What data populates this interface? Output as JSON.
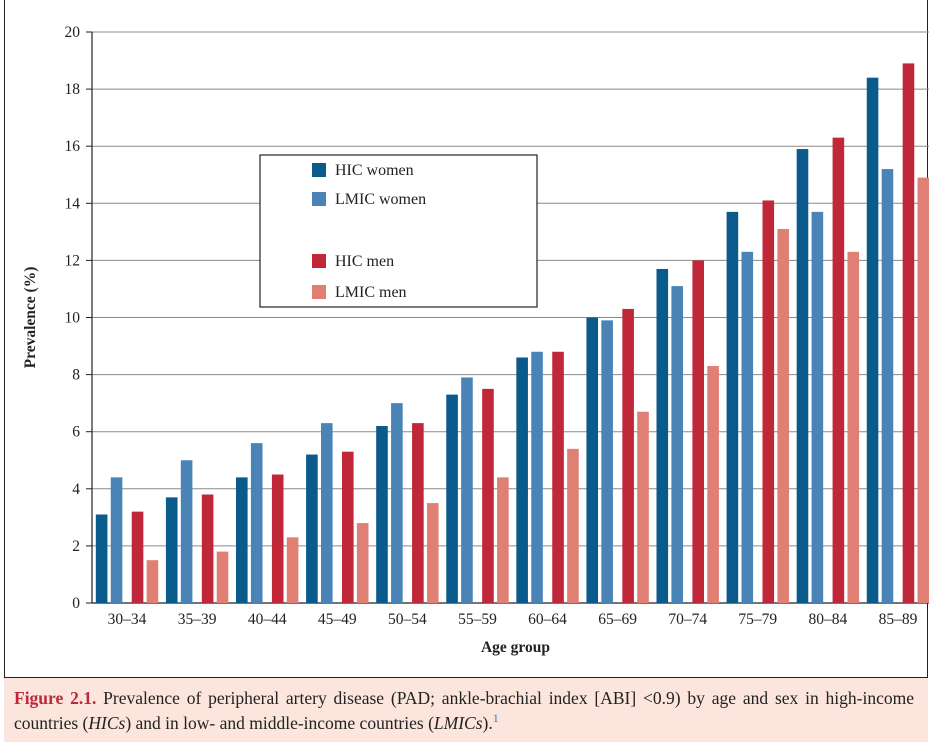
{
  "chart_data": {
    "type": "bar",
    "categories": [
      "30–34",
      "35–39",
      "40–44",
      "45–49",
      "50–54",
      "55–59",
      "60–64",
      "65–69",
      "70–74",
      "75–79",
      "80–84",
      "85–89"
    ],
    "series": [
      {
        "name": "HIC women",
        "color": "#0b5a8c",
        "values": [
          3.1,
          3.7,
          4.4,
          5.2,
          6.2,
          7.3,
          8.6,
          10.0,
          11.7,
          13.7,
          15.9,
          18.4
        ]
      },
      {
        "name": "LMIC women",
        "color": "#4a84b6",
        "values": [
          4.4,
          5.0,
          5.6,
          6.3,
          7.0,
          7.9,
          8.8,
          9.9,
          11.1,
          12.3,
          13.7,
          15.2
        ]
      },
      {
        "name": "HIC men",
        "color": "#c0283a",
        "values": [
          3.2,
          3.8,
          4.5,
          5.3,
          6.3,
          7.5,
          8.8,
          10.3,
          12.0,
          14.1,
          16.3,
          18.9
        ]
      },
      {
        "name": "LMIC men",
        "color": "#e07f73",
        "values": [
          1.5,
          1.8,
          2.3,
          2.8,
          3.5,
          4.4,
          5.4,
          6.7,
          8.3,
          13.1,
          12.3,
          14.9
        ]
      }
    ],
    "xlabel": "Age group",
    "ylabel": "Prevalence (%)",
    "ylim": [
      0,
      20
    ],
    "yticks": [
      0,
      2,
      4,
      6,
      8,
      10,
      12,
      14,
      16,
      18,
      20
    ],
    "grid": true,
    "legend": "top-left"
  },
  "caption": {
    "label": "Figure 2.1.",
    "text_1": " Prevalence of peripheral artery disease (PAD; ankle-brachial index [ABI] <0.9) by age and sex in high-income countries (",
    "hic": "HICs",
    "text_2": ") and in low- and middle-income countries (",
    "lmic": "LMICs",
    "text_3": ").",
    "footnote": "1"
  }
}
